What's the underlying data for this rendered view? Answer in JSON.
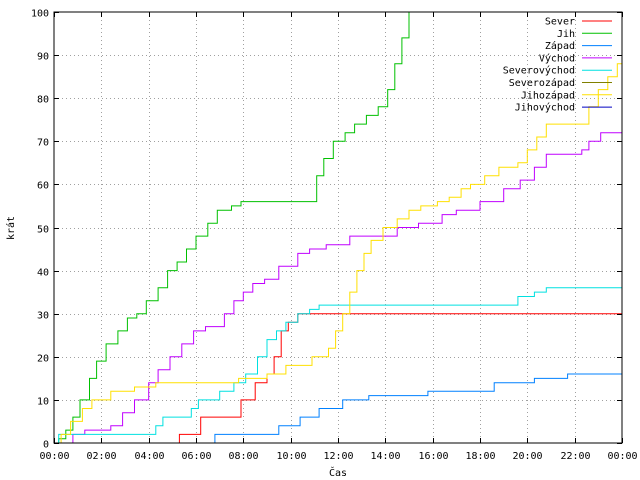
{
  "chart_data": {
    "type": "line",
    "title": "",
    "xlabel": "Čas",
    "ylabel": "krát",
    "xlim": [
      0,
      24
    ],
    "ylim": [
      0,
      100
    ],
    "x_ticks": [
      {
        "value": 0,
        "label": "00:00"
      },
      {
        "value": 2,
        "label": "02:00"
      },
      {
        "value": 4,
        "label": "04:00"
      },
      {
        "value": 6,
        "label": "06:00"
      },
      {
        "value": 8,
        "label": "08:00"
      },
      {
        "value": 10,
        "label": "10:00"
      },
      {
        "value": 12,
        "label": "12:00"
      },
      {
        "value": 14,
        "label": "14:00"
      },
      {
        "value": 16,
        "label": "16:00"
      },
      {
        "value": 18,
        "label": "18:00"
      },
      {
        "value": 20,
        "label": "20:00"
      },
      {
        "value": 22,
        "label": "22:00"
      },
      {
        "value": 24,
        "label": "00:00"
      }
    ],
    "y_ticks": [
      0,
      10,
      20,
      30,
      40,
      50,
      60,
      70,
      80,
      90,
      100
    ],
    "grid": true,
    "legend_position": "top-right",
    "series": [
      {
        "name": "Sever",
        "color": "#ff0000",
        "points": [
          [
            0,
            0
          ],
          [
            5.3,
            0
          ],
          [
            5.3,
            2
          ],
          [
            6.2,
            2
          ],
          [
            6.2,
            6
          ],
          [
            7.3,
            6
          ],
          [
            7.9,
            10
          ],
          [
            8.5,
            14
          ],
          [
            9.0,
            16
          ],
          [
            9.3,
            20
          ],
          [
            9.6,
            26
          ],
          [
            9.9,
            28
          ],
          [
            10.3,
            30
          ],
          [
            24,
            30
          ]
        ]
      },
      {
        "name": "Jih",
        "color": "#00c000",
        "points": [
          [
            0,
            0
          ],
          [
            0.2,
            1
          ],
          [
            0.5,
            3
          ],
          [
            0.8,
            6
          ],
          [
            1.1,
            10
          ],
          [
            1.5,
            15
          ],
          [
            1.8,
            19
          ],
          [
            2.2,
            23
          ],
          [
            2.7,
            26
          ],
          [
            3.1,
            29
          ],
          [
            3.5,
            30
          ],
          [
            3.9,
            33
          ],
          [
            4.4,
            36
          ],
          [
            4.8,
            40
          ],
          [
            5.2,
            42
          ],
          [
            5.6,
            45
          ],
          [
            6.0,
            48
          ],
          [
            6.5,
            51
          ],
          [
            6.9,
            54
          ],
          [
            7.5,
            55
          ],
          [
            7.9,
            56
          ],
          [
            10.8,
            56
          ],
          [
            11.1,
            62
          ],
          [
            11.4,
            66
          ],
          [
            11.8,
            70
          ],
          [
            12.3,
            72
          ],
          [
            12.7,
            74
          ],
          [
            13.2,
            76
          ],
          [
            13.7,
            78
          ],
          [
            14.1,
            82
          ],
          [
            14.4,
            88
          ],
          [
            14.7,
            94
          ],
          [
            15.0,
            100
          ]
        ]
      },
      {
        "name": "Západ",
        "color": "#0080ff",
        "points": [
          [
            0,
            0
          ],
          [
            6.8,
            0
          ],
          [
            6.8,
            2
          ],
          [
            9.0,
            2
          ],
          [
            9.5,
            4
          ],
          [
            10.4,
            6
          ],
          [
            11.2,
            8
          ],
          [
            12.2,
            10
          ],
          [
            13.3,
            11
          ],
          [
            15.8,
            12
          ],
          [
            18.6,
            14
          ],
          [
            20.3,
            15
          ],
          [
            21.7,
            16
          ],
          [
            24,
            16
          ]
        ]
      },
      {
        "name": "Východ",
        "color": "#c000ff",
        "points": [
          [
            0,
            0
          ],
          [
            0.8,
            0
          ],
          [
            0.8,
            2
          ],
          [
            1.3,
            3
          ],
          [
            2.4,
            4
          ],
          [
            2.9,
            7
          ],
          [
            3.4,
            10
          ],
          [
            4.0,
            14
          ],
          [
            4.4,
            17
          ],
          [
            4.9,
            20
          ],
          [
            5.4,
            23
          ],
          [
            5.9,
            26
          ],
          [
            6.4,
            27
          ],
          [
            7.2,
            30
          ],
          [
            7.6,
            33
          ],
          [
            8.0,
            35
          ],
          [
            8.4,
            37
          ],
          [
            8.9,
            38
          ],
          [
            9.5,
            41
          ],
          [
            10.3,
            44
          ],
          [
            10.8,
            45
          ],
          [
            11.5,
            46
          ],
          [
            12.5,
            48
          ],
          [
            13.5,
            48
          ],
          [
            14.5,
            50
          ],
          [
            15.4,
            51
          ],
          [
            16.4,
            53
          ],
          [
            17.0,
            54
          ],
          [
            18.0,
            56
          ],
          [
            19.0,
            59
          ],
          [
            19.7,
            61
          ],
          [
            20.3,
            64
          ],
          [
            20.8,
            67
          ],
          [
            22.3,
            68
          ],
          [
            22.6,
            70
          ],
          [
            23.1,
            72
          ],
          [
            24,
            72
          ]
        ]
      },
      {
        "name": "Severovýchod",
        "color": "#00e0e0",
        "points": [
          [
            0,
            0
          ],
          [
            0.2,
            2
          ],
          [
            4.1,
            2
          ],
          [
            4.3,
            4
          ],
          [
            4.6,
            6
          ],
          [
            5.6,
            6
          ],
          [
            5.8,
            8
          ],
          [
            6.1,
            10
          ],
          [
            6.6,
            10
          ],
          [
            7.0,
            12
          ],
          [
            7.6,
            14
          ],
          [
            8.1,
            16
          ],
          [
            8.6,
            20
          ],
          [
            9.0,
            24
          ],
          [
            9.4,
            26
          ],
          [
            9.8,
            28
          ],
          [
            10.3,
            30
          ],
          [
            10.8,
            31
          ],
          [
            11.2,
            32
          ],
          [
            19.1,
            32
          ],
          [
            19.6,
            34
          ],
          [
            20.3,
            35
          ],
          [
            20.8,
            36
          ],
          [
            24,
            36
          ]
        ]
      },
      {
        "name": "Severozápad",
        "color": "#808000",
        "points": [
          [
            0,
            0
          ],
          [
            24,
            0
          ]
        ]
      },
      {
        "name": "Jihozápad",
        "color": "#ffe000",
        "points": [
          [
            0,
            0
          ],
          [
            0.3,
            2
          ],
          [
            0.7,
            5
          ],
          [
            1.2,
            8
          ],
          [
            1.6,
            10
          ],
          [
            2.4,
            12
          ],
          [
            3.4,
            13
          ],
          [
            4.3,
            14
          ],
          [
            7.4,
            14
          ],
          [
            7.8,
            15
          ],
          [
            8.5,
            15
          ],
          [
            9.0,
            16
          ],
          [
            9.8,
            18
          ],
          [
            10.9,
            20
          ],
          [
            11.6,
            22
          ],
          [
            11.9,
            26
          ],
          [
            12.2,
            30
          ],
          [
            12.5,
            35
          ],
          [
            12.8,
            40
          ],
          [
            13.1,
            44
          ],
          [
            13.4,
            47
          ],
          [
            13.9,
            50
          ],
          [
            14.5,
            52
          ],
          [
            15.0,
            54
          ],
          [
            15.5,
            55
          ],
          [
            16.2,
            56
          ],
          [
            16.7,
            57
          ],
          [
            17.2,
            59
          ],
          [
            17.6,
            60
          ],
          [
            18.2,
            62
          ],
          [
            18.8,
            64
          ],
          [
            19.6,
            65
          ],
          [
            20.0,
            68
          ],
          [
            20.4,
            71
          ],
          [
            20.8,
            74
          ],
          [
            22.1,
            74
          ],
          [
            22.6,
            78
          ],
          [
            23.0,
            82
          ],
          [
            23.4,
            85
          ],
          [
            23.8,
            88
          ],
          [
            24,
            88
          ]
        ]
      },
      {
        "name": "Jihovýchod",
        "color": "#0000c0",
        "points": [
          [
            0,
            0
          ],
          [
            24,
            0
          ]
        ]
      }
    ]
  }
}
